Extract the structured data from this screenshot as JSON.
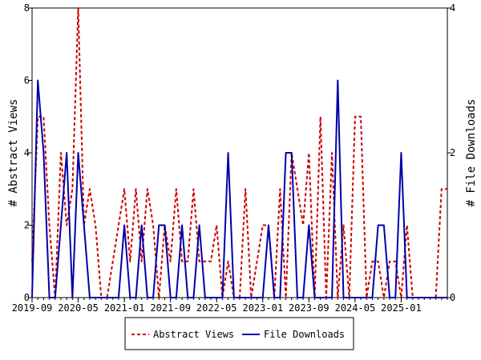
{
  "chart_data": {
    "type": "line",
    "title": "",
    "ylabel_left": "# Abstract Views",
    "ylabel_right": "# File Downloads",
    "xlabel": "",
    "x_ticks": [
      "2019-09",
      "2020-05",
      "2021-01",
      "2021-09",
      "2022-05",
      "2023-01",
      "2023-09",
      "2024-05",
      "2025-01"
    ],
    "left_ticks": [
      "0",
      "2",
      "4",
      "6",
      "8"
    ],
    "right_ticks": [
      "0",
      "2",
      "4"
    ],
    "ylim_left": [
      0,
      8
    ],
    "ylim_right": [
      0,
      4
    ],
    "x_start": "2019-09",
    "x_end": "2025-09",
    "grid": false,
    "legend_position": "bottom",
    "colors": {
      "views": "#cc0000",
      "downloads": "#0000aa"
    },
    "series": [
      {
        "name": "Abstract Views",
        "axis": "left",
        "style": "dashed",
        "points": [
          [
            "2019-09",
            1
          ],
          [
            "2019-10",
            5
          ],
          [
            "2019-11",
            5
          ],
          [
            "2019-12",
            2
          ],
          [
            "2020-01",
            0
          ],
          [
            "2020-02",
            4
          ],
          [
            "2020-03",
            2
          ],
          [
            "2020-04",
            3
          ],
          [
            "2020-05",
            8
          ],
          [
            "2020-06",
            2
          ],
          [
            "2020-07",
            3
          ],
          [
            "2020-08",
            2
          ],
          [
            "2020-09",
            0
          ],
          [
            "2020-10",
            0
          ],
          [
            "2020-11",
            1
          ],
          [
            "2020-12",
            2
          ],
          [
            "2021-01",
            3
          ],
          [
            "2021-02",
            1
          ],
          [
            "2021-03",
            3
          ],
          [
            "2021-04",
            1
          ],
          [
            "2021-05",
            3
          ],
          [
            "2021-06",
            2
          ],
          [
            "2021-07",
            0
          ],
          [
            "2021-08",
            2
          ],
          [
            "2021-09",
            1
          ],
          [
            "2021-10",
            3
          ],
          [
            "2021-11",
            1
          ],
          [
            "2021-12",
            1
          ],
          [
            "2022-01",
            3
          ],
          [
            "2022-02",
            1
          ],
          [
            "2022-03",
            1
          ],
          [
            "2022-04",
            1
          ],
          [
            "2022-05",
            2
          ],
          [
            "2022-06",
            0
          ],
          [
            "2022-07",
            1
          ],
          [
            "2022-08",
            0
          ],
          [
            "2022-09",
            0
          ],
          [
            "2022-10",
            3
          ],
          [
            "2022-11",
            0
          ],
          [
            "2022-12",
            1
          ],
          [
            "2023-01",
            2
          ],
          [
            "2023-02",
            2
          ],
          [
            "2023-03",
            0
          ],
          [
            "2023-04",
            3
          ],
          [
            "2023-05",
            0
          ],
          [
            "2023-06",
            4
          ],
          [
            "2023-07",
            3
          ],
          [
            "2023-08",
            2
          ],
          [
            "2023-09",
            4
          ],
          [
            "2023-10",
            0
          ],
          [
            "2023-11",
            5
          ],
          [
            "2023-12",
            0
          ],
          [
            "2024-01",
            4
          ],
          [
            "2024-02",
            0
          ],
          [
            "2024-03",
            2
          ],
          [
            "2024-04",
            0
          ],
          [
            "2024-05",
            5
          ],
          [
            "2024-06",
            5
          ],
          [
            "2024-07",
            0
          ],
          [
            "2024-08",
            1
          ],
          [
            "2024-09",
            1
          ],
          [
            "2024-10",
            0
          ],
          [
            "2024-11",
            1
          ],
          [
            "2024-12",
            1
          ],
          [
            "2025-01",
            0
          ],
          [
            "2025-02",
            2
          ],
          [
            "2025-03",
            0
          ],
          [
            "2025-04",
            0
          ],
          [
            "2025-05",
            0
          ],
          [
            "2025-06",
            0
          ],
          [
            "2025-07",
            0
          ],
          [
            "2025-08",
            3
          ],
          [
            "2025-09",
            3
          ]
        ]
      },
      {
        "name": "File Downloads",
        "axis": "right",
        "style": "solid",
        "points": [
          [
            "2019-09",
            0
          ],
          [
            "2019-10",
            3
          ],
          [
            "2019-11",
            2
          ],
          [
            "2019-12",
            0
          ],
          [
            "2020-01",
            0
          ],
          [
            "2020-02",
            1
          ],
          [
            "2020-03",
            2
          ],
          [
            "2020-04",
            0
          ],
          [
            "2020-05",
            2
          ],
          [
            "2020-06",
            1
          ],
          [
            "2020-07",
            0
          ],
          [
            "2020-08",
            0
          ],
          [
            "2020-09",
            0
          ],
          [
            "2020-10",
            0
          ],
          [
            "2020-11",
            0
          ],
          [
            "2020-12",
            0
          ],
          [
            "2021-01",
            1
          ],
          [
            "2021-02",
            0
          ],
          [
            "2021-03",
            0
          ],
          [
            "2021-04",
            1
          ],
          [
            "2021-05",
            0
          ],
          [
            "2021-06",
            0
          ],
          [
            "2021-07",
            1
          ],
          [
            "2021-08",
            1
          ],
          [
            "2021-09",
            0
          ],
          [
            "2021-10",
            0
          ],
          [
            "2021-11",
            1
          ],
          [
            "2021-12",
            0
          ],
          [
            "2022-01",
            0
          ],
          [
            "2022-02",
            1
          ],
          [
            "2022-03",
            0
          ],
          [
            "2022-04",
            0
          ],
          [
            "2022-05",
            0
          ],
          [
            "2022-06",
            0
          ],
          [
            "2022-07",
            2
          ],
          [
            "2022-08",
            0
          ],
          [
            "2022-09",
            0
          ],
          [
            "2022-10",
            0
          ],
          [
            "2022-11",
            0
          ],
          [
            "2022-12",
            0
          ],
          [
            "2023-01",
            0
          ],
          [
            "2023-02",
            1
          ],
          [
            "2023-03",
            0
          ],
          [
            "2023-04",
            0
          ],
          [
            "2023-05",
            2
          ],
          [
            "2023-06",
            2
          ],
          [
            "2023-07",
            0
          ],
          [
            "2023-08",
            0
          ],
          [
            "2023-09",
            1
          ],
          [
            "2023-10",
            0
          ],
          [
            "2023-11",
            0
          ],
          [
            "2023-12",
            0
          ],
          [
            "2024-01",
            0
          ],
          [
            "2024-02",
            3
          ],
          [
            "2024-03",
            0
          ],
          [
            "2024-04",
            0
          ],
          [
            "2024-05",
            0
          ],
          [
            "2024-06",
            0
          ],
          [
            "2024-07",
            0
          ],
          [
            "2024-08",
            0
          ],
          [
            "2024-09",
            1
          ],
          [
            "2024-10",
            1
          ],
          [
            "2024-11",
            0
          ],
          [
            "2024-12",
            0
          ],
          [
            "2025-01",
            2
          ],
          [
            "2025-02",
            0
          ],
          [
            "2025-03",
            0
          ],
          [
            "2025-04",
            0
          ],
          [
            "2025-05",
            0
          ],
          [
            "2025-06",
            0
          ],
          [
            "2025-07",
            0
          ],
          [
            "2025-08",
            0
          ],
          [
            "2025-09",
            0
          ]
        ]
      }
    ]
  }
}
